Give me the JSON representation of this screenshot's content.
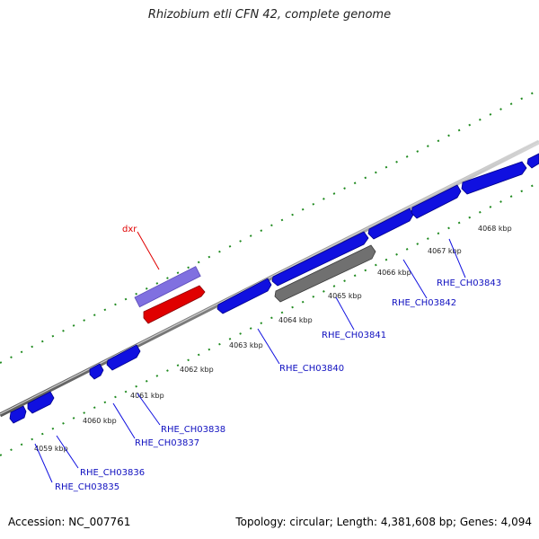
{
  "title": "Rhizobium etli CFN 42, complete genome",
  "accession": "Accession: NC_007761",
  "summary": "Topology: circular; Length: 4,381,608 bp; Genes: 4,094",
  "colors": {
    "backbone": "#9a9a9a",
    "ticks": "#1f8a1f",
    "gene_forward": "#1010e0",
    "gene_selected": "#e00000",
    "gene_highlight": "#8070e0",
    "gene_gray": "#707070",
    "label": "#1010c0"
  },
  "kbp_labels": [
    "4059 kbp",
    "4060 kbp",
    "4061 kbp",
    "4062 kbp",
    "4063 kbp",
    "4064 kbp",
    "4065 kbp",
    "4066 kbp",
    "4067 kbp",
    "4068 kbp"
  ],
  "gene_labels": [
    "RHE_CH03835",
    "RHE_CH03836",
    "RHE_CH03837",
    "RHE_CH03838",
    "RHE_CH03840",
    "RHE_CH03841",
    "RHE_CH03842",
    "RHE_CH03843"
  ],
  "highlight_label": "dxr"
}
